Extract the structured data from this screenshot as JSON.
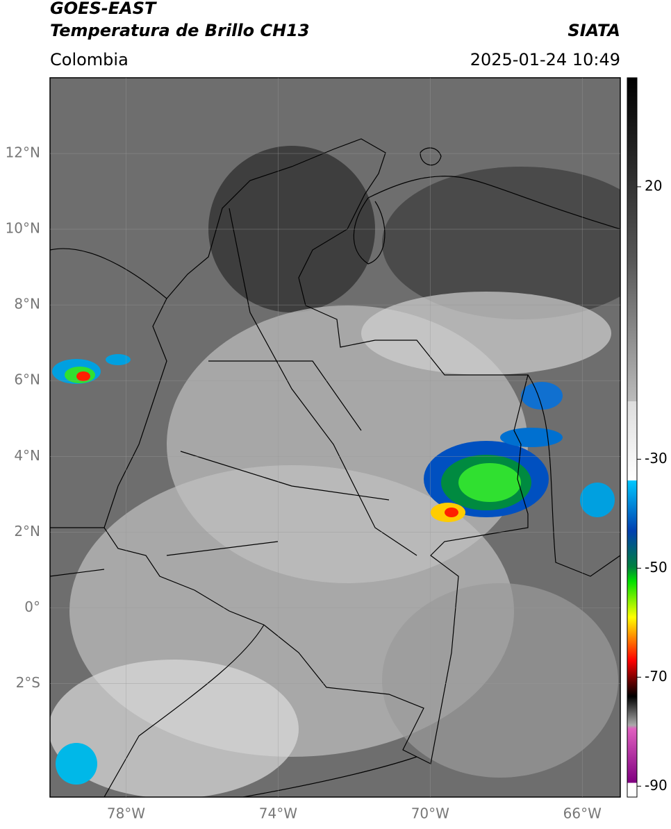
{
  "header": {
    "title": "GOES-EAST",
    "subtitle": "Temperatura de Brillo CH13",
    "source": "SIATA",
    "region": "Colombia",
    "datetime": "2025-01-24 10:49"
  },
  "map": {
    "lonlim": [
      -80,
      -65
    ],
    "latlim": [
      -5,
      14
    ],
    "lon_ticks": [
      {
        "value": -78,
        "label": "78°W"
      },
      {
        "value": -74,
        "label": "74°W"
      },
      {
        "value": -70,
        "label": "70°W"
      },
      {
        "value": -66,
        "label": "66°W"
      }
    ],
    "lat_ticks": [
      {
        "value": 12,
        "label": "12°N"
      },
      {
        "value": 10,
        "label": "10°N"
      },
      {
        "value": 8,
        "label": "8°N"
      },
      {
        "value": 6,
        "label": "6°N"
      },
      {
        "value": 4,
        "label": "4°N"
      },
      {
        "value": 2,
        "label": "2°N"
      },
      {
        "value": 0,
        "label": "0°"
      },
      {
        "value": -2,
        "label": "2°S"
      }
    ]
  },
  "colorbar": {
    "lim": [
      -92,
      40
    ],
    "ticks": [
      20,
      -30,
      -50,
      -70,
      -90
    ]
  }
}
